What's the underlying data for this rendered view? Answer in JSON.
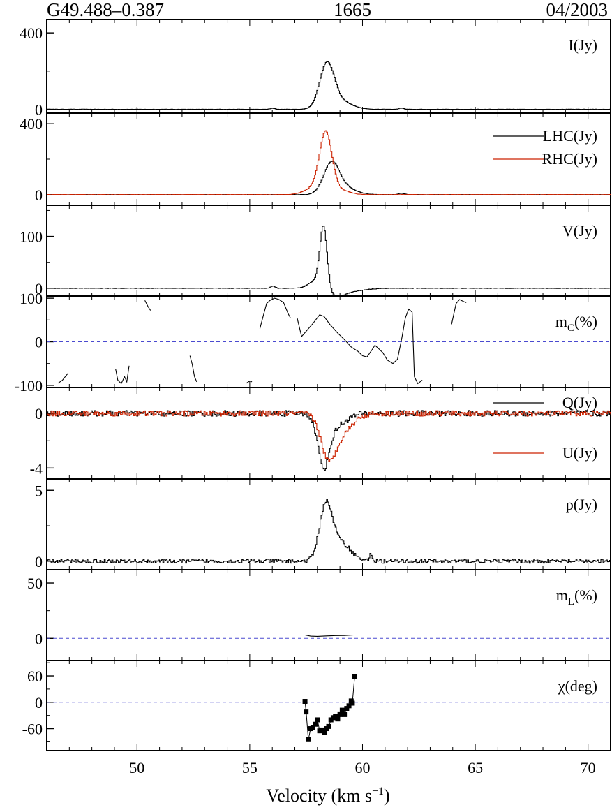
{
  "header": {
    "source": "G49.488–0.387",
    "frequency": "1665",
    "epoch": "04/2003"
  },
  "chart_data": {
    "type": "line",
    "xlabel_main": "Velocity (km s",
    "xlabel_exp": "−1",
    "xlabel_close": ")",
    "xlim": [
      46,
      71
    ],
    "xticks": [
      50,
      55,
      60,
      65,
      70
    ],
    "panels": [
      {
        "id": "I",
        "label_main": "I(Jy)",
        "label_sub": "",
        "label_tail": "",
        "ylim": [
          -20,
          470
        ],
        "yticks": [
          0,
          400
        ],
        "dashed_zero": false,
        "series": [
          {
            "name": "",
            "color": "#000000",
            "style": "step",
            "peaks": [
              [
                58.4,
                230,
                0.32
              ],
              [
                59.0,
                40,
                0.5
              ],
              [
                56.0,
                5,
                0.1
              ],
              [
                61.7,
                6,
                0.1
              ]
            ],
            "baseline": 0,
            "noise": 0.8
          }
        ]
      },
      {
        "id": "LR",
        "label_main": "",
        "label_sub": "",
        "label_tail": "",
        "ylim": [
          -60,
          460
        ],
        "yticks": [
          0,
          400
        ],
        "dashed_zero": false,
        "legend": [
          {
            "name": "LHC(Jy)",
            "color": "#000000"
          },
          {
            "name": "RHC(Jy)",
            "color": "#cc2200"
          }
        ],
        "series": [
          {
            "name": "LHC(Jy)",
            "color": "#000000",
            "style": "step",
            "peaks": [
              [
                58.6,
                170,
                0.35
              ],
              [
                59.2,
                35,
                0.5
              ],
              [
                61.7,
                8,
                0.12
              ]
            ],
            "baseline": 0,
            "noise": 1.0
          },
          {
            "name": "RHC(Jy)",
            "color": "#cc2200",
            "style": "step",
            "peaks": [
              [
                58.35,
                330,
                0.27
              ],
              [
                57.9,
                40,
                0.45
              ],
              [
                59.0,
                25,
                0.4
              ]
            ],
            "baseline": 0,
            "noise": 1.0
          }
        ]
      },
      {
        "id": "V",
        "label_main": "V(Jy)",
        "label_sub": "",
        "label_tail": "",
        "ylim": [
          -15,
          160
        ],
        "yticks": [
          0,
          100
        ],
        "dashed_zero": false,
        "series": [
          {
            "name": "",
            "color": "#000000",
            "style": "step",
            "peaks": [
              [
                58.25,
                118,
                0.16
              ],
              [
                57.9,
                14,
                0.3
              ],
              [
                58.8,
                -12,
                0.35
              ],
              [
                59.4,
                -6,
                0.6
              ],
              [
                56.0,
                4,
                0.1
              ]
            ],
            "baseline": 0,
            "noise": 0.5
          }
        ]
      },
      {
        "id": "mc",
        "label_main": "m",
        "label_sub": "C",
        "label_tail": "(%)",
        "ylim": [
          -105,
          105
        ],
        "yticks": [
          -100,
          0,
          100
        ],
        "dashed_zero": true,
        "segments": [
          [
            [
              46.5,
              -95
            ],
            [
              46.7,
              -88
            ],
            [
              46.85,
              -78
            ],
            [
              46.95,
              -72
            ]
          ],
          [
            [
              50.35,
              95
            ],
            [
              50.5,
              80
            ],
            [
              50.6,
              72
            ]
          ],
          [
            [
              49.05,
              -62
            ],
            [
              49.15,
              -88
            ],
            [
              49.3,
              -96
            ],
            [
              49.45,
              -80
            ],
            [
              49.55,
              -92
            ],
            [
              49.65,
              -55
            ]
          ],
          [
            [
              52.35,
              -32
            ],
            [
              52.45,
              -52
            ],
            [
              52.55,
              -80
            ],
            [
              52.65,
              -92
            ]
          ],
          [
            [
              54.85,
              -95
            ],
            [
              55.0,
              -90
            ],
            [
              55.1,
              -92
            ]
          ],
          [
            [
              55.45,
              30
            ],
            [
              55.6,
              60
            ],
            [
              55.75,
              88
            ],
            [
              55.9,
              95
            ],
            [
              56.1,
              100
            ],
            [
              56.3,
              97
            ],
            [
              56.5,
              90
            ],
            [
              56.7,
              65
            ],
            [
              56.8,
              55
            ]
          ],
          [
            [
              57.1,
              55
            ],
            [
              57.3,
              12
            ],
            [
              57.5,
              24
            ],
            [
              57.8,
              42
            ],
            [
              58.1,
              62
            ],
            [
              58.3,
              58
            ],
            [
              58.55,
              40
            ],
            [
              58.9,
              20
            ],
            [
              59.2,
              5
            ],
            [
              59.5,
              -12
            ],
            [
              59.8,
              -22
            ],
            [
              60.0,
              -32
            ],
            [
              60.2,
              -35
            ],
            [
              60.4,
              -20
            ],
            [
              60.55,
              -8
            ],
            [
              60.7,
              -15
            ],
            [
              60.9,
              -25
            ],
            [
              61.1,
              -42
            ],
            [
              61.35,
              -50
            ],
            [
              61.55,
              -40
            ],
            [
              61.75,
              10
            ],
            [
              61.9,
              55
            ],
            [
              62.05,
              75
            ],
            [
              62.2,
              68
            ],
            [
              62.3,
              -80
            ],
            [
              62.45,
              -96
            ],
            [
              62.65,
              -88
            ]
          ],
          [
            [
              63.95,
              40
            ],
            [
              64.15,
              88
            ],
            [
              64.3,
              97
            ],
            [
              64.5,
              92
            ],
            [
              64.6,
              90
            ]
          ]
        ]
      },
      {
        "id": "QU",
        "label_main": "",
        "label_sub": "",
        "label_tail": "",
        "ylim": [
          -4.8,
          1.9
        ],
        "yticks": [
          -4,
          0
        ],
        "dashed_zero": false,
        "legend": [
          {
            "name": "Q(Jy)",
            "color": "#000000"
          },
          {
            "name": "U(Jy)",
            "color": "#cc2200"
          }
        ],
        "series": [
          {
            "name": "Q(Jy)",
            "color": "#000000",
            "style": "step",
            "peaks": [
              [
                58.25,
                -3.6,
                0.25
              ],
              [
                58.8,
                -0.9,
                0.45
              ]
            ],
            "baseline": 0,
            "noise": 0.22
          },
          {
            "name": "U(Jy)",
            "color": "#cc2200",
            "style": "step",
            "peaks": [
              [
                58.45,
                -2.7,
                0.32
              ],
              [
                59.0,
                -1.4,
                0.5
              ]
            ],
            "baseline": 0,
            "noise": 0.2
          }
        ]
      },
      {
        "id": "p",
        "label_main": "p(Jy)",
        "label_sub": "",
        "label_tail": "",
        "ylim": [
          -0.6,
          5.8
        ],
        "yticks": [
          0,
          5
        ],
        "dashed_zero": false,
        "series": [
          {
            "name": "",
            "color": "#000000",
            "style": "step",
            "peaks": [
              [
                58.35,
                3.8,
                0.28
              ],
              [
                59.0,
                1.3,
                0.45
              ],
              [
                60.35,
                0.6,
                0.05
              ]
            ],
            "baseline": 0,
            "noise": 0.14
          }
        ]
      },
      {
        "id": "mL",
        "label_main": "m",
        "label_sub": "L",
        "label_tail": "(%)",
        "ylim": [
          -20,
          62
        ],
        "yticks": [
          0,
          50
        ],
        "dashed_zero": true,
        "segments": [
          [
            [
              57.45,
              3
            ],
            [
              57.7,
              2
            ],
            [
              58.0,
              1.8
            ],
            [
              58.4,
              2.2
            ],
            [
              58.8,
              2.5
            ],
            [
              59.2,
              2.6
            ],
            [
              59.6,
              3
            ]
          ]
        ]
      },
      {
        "id": "chi",
        "label_main": "χ(deg)",
        "label_sub": "",
        "label_tail": "",
        "ylim": [
          -110,
          95
        ],
        "yticks": [
          -60,
          0,
          60
        ],
        "dashed_zero": true,
        "markers": [
          [
            57.45,
            2
          ],
          [
            57.5,
            -22
          ],
          [
            57.6,
            -85
          ],
          [
            57.7,
            -60
          ],
          [
            57.8,
            -57
          ],
          [
            57.9,
            -50
          ],
          [
            58.0,
            -40
          ],
          [
            58.1,
            -65
          ],
          [
            58.2,
            -63
          ],
          [
            58.3,
            -68
          ],
          [
            58.4,
            -60
          ],
          [
            58.5,
            -55
          ],
          [
            58.6,
            -40
          ],
          [
            58.7,
            -35
          ],
          [
            58.8,
            -32
          ],
          [
            58.9,
            -38
          ],
          [
            59.0,
            -28
          ],
          [
            59.1,
            -18
          ],
          [
            59.2,
            -28
          ],
          [
            59.3,
            -14
          ],
          [
            59.4,
            -8
          ],
          [
            59.5,
            3
          ],
          [
            59.55,
            -2
          ],
          [
            59.65,
            58
          ]
        ]
      }
    ]
  }
}
